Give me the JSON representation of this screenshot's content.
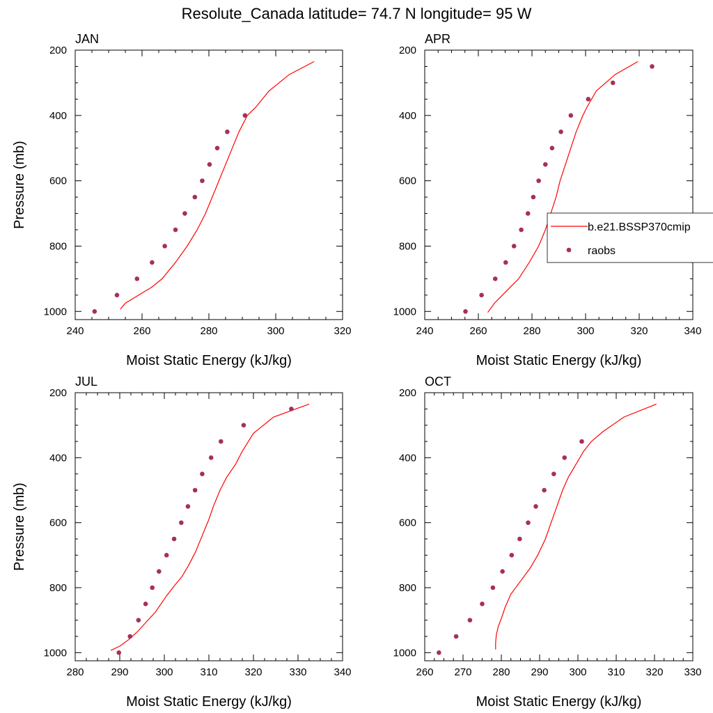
{
  "figure": {
    "title": "Resolute_Canada  latitude= 74.7 N longitude= 95 W"
  },
  "legend": {
    "entries": [
      {
        "label": "b.e21.BSSP370cmip",
        "type": "line",
        "color": "#ff0000"
      },
      {
        "label": "raobs",
        "type": "marker",
        "color": "#a6305a"
      }
    ]
  },
  "chart_data": [
    {
      "type": "line",
      "panel": "JAN",
      "xlabel": "Moist Static Energy (kJ/kg)",
      "ylabel": "Pressure (mb)",
      "xlim": [
        240,
        320
      ],
      "ylim": [
        1025,
        200
      ],
      "xticks": [
        240,
        260,
        280,
        300,
        320
      ],
      "yticks": [
        200,
        400,
        600,
        800,
        1000
      ],
      "series": [
        {
          "name": "b.e21.BSSP370cmip",
          "style": "line",
          "color": "#ff0000",
          "points": [
            [
              253.5,
              993
            ],
            [
              255,
              975
            ],
            [
              259,
              950
            ],
            [
              263,
              925
            ],
            [
              266,
              900
            ],
            [
              270,
              850
            ],
            [
              273.5,
              800
            ],
            [
              276.5,
              750
            ],
            [
              279,
              700
            ],
            [
              281,
              650
            ],
            [
              283,
              600
            ],
            [
              285,
              550
            ],
            [
              287,
              500
            ],
            [
              289,
              450
            ],
            [
              291.5,
              400
            ],
            [
              294,
              375
            ],
            [
              298,
              325
            ],
            [
              304,
              275
            ],
            [
              311.5,
              235
            ]
          ]
        },
        {
          "name": "raobs",
          "style": "marker",
          "color": "#a6305a",
          "points": [
            [
              245.8,
              1000
            ],
            [
              252.5,
              950
            ],
            [
              258.5,
              900
            ],
            [
              263,
              850
            ],
            [
              266.8,
              800
            ],
            [
              270,
              750
            ],
            [
              272.8,
              700
            ],
            [
              275.8,
              650
            ],
            [
              278,
              600
            ],
            [
              280.2,
              550
            ],
            [
              282.5,
              500
            ],
            [
              285.5,
              450
            ],
            [
              290.8,
              400
            ]
          ]
        }
      ]
    },
    {
      "type": "line",
      "panel": "APR",
      "xlabel": "Moist Static Energy (kJ/kg)",
      "ylabel": "",
      "xlim": [
        240,
        340
      ],
      "ylim": [
        1025,
        200
      ],
      "xticks": [
        240,
        260,
        280,
        300,
        320,
        340
      ],
      "yticks": [
        200,
        400,
        600,
        800,
        1000
      ],
      "series": [
        {
          "name": "b.e21.BSSP370cmip",
          "style": "line",
          "color": "#ff0000",
          "points": [
            [
              263.5,
              1003
            ],
            [
              266,
              975
            ],
            [
              269,
              950
            ],
            [
              272,
              925
            ],
            [
              275,
              900
            ],
            [
              279,
              850
            ],
            [
              282.5,
              800
            ],
            [
              285,
              750
            ],
            [
              287,
              700
            ],
            [
              289,
              650
            ],
            [
              290.5,
              600
            ],
            [
              292.5,
              550
            ],
            [
              294.5,
              500
            ],
            [
              296.5,
              450
            ],
            [
              299,
              400
            ],
            [
              300.5,
              375
            ],
            [
              304,
              325
            ],
            [
              311,
              275
            ],
            [
              319.5,
              235
            ]
          ]
        },
        {
          "name": "raobs",
          "style": "marker",
          "color": "#a6305a",
          "points": [
            [
              255.2,
              1000
            ],
            [
              261.2,
              950
            ],
            [
              266.3,
              900
            ],
            [
              270.2,
              850
            ],
            [
              273.3,
              800
            ],
            [
              276,
              750
            ],
            [
              278.5,
              700
            ],
            [
              280.5,
              650
            ],
            [
              282.5,
              600
            ],
            [
              285,
              550
            ],
            [
              287.5,
              500
            ],
            [
              290.8,
              450
            ],
            [
              294.5,
              400
            ],
            [
              301,
              350
            ],
            [
              310.2,
              300
            ],
            [
              324.8,
              250
            ]
          ]
        }
      ]
    },
    {
      "type": "line",
      "panel": "JUL",
      "xlabel": "Moist Static Energy (kJ/kg)",
      "ylabel": "Pressure (mb)",
      "xlim": [
        280,
        340
      ],
      "ylim": [
        1025,
        200
      ],
      "xticks": [
        280,
        290,
        300,
        310,
        320,
        330,
        340
      ],
      "yticks": [
        200,
        400,
        600,
        800,
        1000
      ],
      "series": [
        {
          "name": "b.e21.BSSP370cmip",
          "style": "line",
          "color": "#ff0000",
          "points": [
            [
              288,
              993
            ],
            [
              290,
              980
            ],
            [
              292,
              960
            ],
            [
              294,
              935
            ],
            [
              296,
              905
            ],
            [
              298,
              875
            ],
            [
              300.5,
              825
            ],
            [
              302.5,
              790
            ],
            [
              304,
              765
            ],
            [
              305.5,
              730
            ],
            [
              307,
              690
            ],
            [
              308.5,
              640
            ],
            [
              310,
              590
            ],
            [
              311,
              550
            ],
            [
              312.5,
              500
            ],
            [
              314,
              460
            ],
            [
              316,
              420
            ],
            [
              317.5,
              380
            ],
            [
              320,
              325
            ],
            [
              324.5,
              275
            ],
            [
              332.5,
              235
            ]
          ]
        },
        {
          "name": "raobs",
          "style": "marker",
          "color": "#a6305a",
          "points": [
            [
              289.8,
              1000
            ],
            [
              292.3,
              950
            ],
            [
              294.2,
              900
            ],
            [
              295.8,
              850
            ],
            [
              297.3,
              800
            ],
            [
              298.8,
              750
            ],
            [
              300.5,
              700
            ],
            [
              302.2,
              650
            ],
            [
              303.8,
              600
            ],
            [
              305.3,
              550
            ],
            [
              306.9,
              500
            ],
            [
              308.5,
              450
            ],
            [
              310.5,
              400
            ],
            [
              312.7,
              350
            ],
            [
              317.8,
              300
            ],
            [
              328.5,
              250
            ]
          ]
        }
      ]
    },
    {
      "type": "line",
      "panel": "OCT",
      "xlabel": "Moist Static Energy (kJ/kg)",
      "ylabel": "",
      "xlim": [
        260,
        330
      ],
      "ylim": [
        1025,
        200
      ],
      "xticks": [
        260,
        270,
        280,
        290,
        300,
        310,
        320,
        330
      ],
      "yticks": [
        200,
        400,
        600,
        800,
        1000
      ],
      "series": [
        {
          "name": "b.e21.BSSP370cmip",
          "style": "line",
          "color": "#ff0000",
          "points": [
            [
              278.5,
              990
            ],
            [
              278.5,
              970
            ],
            [
              278.7,
              945
            ],
            [
              279.2,
              920
            ],
            [
              280,
              895
            ],
            [
              281,
              860
            ],
            [
              282.5,
              820
            ],
            [
              285,
              780
            ],
            [
              287.5,
              740
            ],
            [
              289.5,
              700
            ],
            [
              291.5,
              650
            ],
            [
              293,
              600
            ],
            [
              294.5,
              550
            ],
            [
              296,
              500
            ],
            [
              297.5,
              460
            ],
            [
              299.5,
              420
            ],
            [
              301.5,
              380
            ],
            [
              303.5,
              350
            ],
            [
              306.5,
              320
            ],
            [
              312,
              275
            ],
            [
              320.5,
              235
            ]
          ]
        },
        {
          "name": "raobs",
          "style": "marker",
          "color": "#a6305a",
          "points": [
            [
              263.7,
              1000
            ],
            [
              268.2,
              950
            ],
            [
              271.8,
              900
            ],
            [
              275,
              850
            ],
            [
              277.8,
              800
            ],
            [
              280.3,
              750
            ],
            [
              282.7,
              700
            ],
            [
              284.8,
              650
            ],
            [
              287,
              600
            ],
            [
              289,
              550
            ],
            [
              291.2,
              500
            ],
            [
              293.7,
              450
            ],
            [
              296.5,
              400
            ],
            [
              301,
              350
            ]
          ]
        }
      ]
    }
  ]
}
